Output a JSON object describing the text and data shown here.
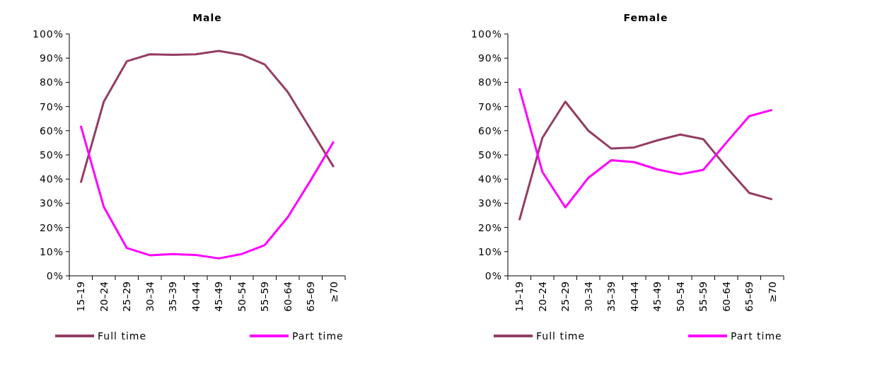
{
  "chart_data": [
    {
      "type": "line",
      "title": "Male",
      "categories": [
        "15–19",
        "20–24",
        "25–29",
        "30–34",
        "35–39",
        "40–44",
        "45–49",
        "50–54",
        "55–59",
        "60–64",
        "65–69",
        "≥70"
      ],
      "series": [
        {
          "name": "Full time",
          "color": "#943d63",
          "values": [
            38.5,
            72,
            88.7,
            91.6,
            91.4,
            91.6,
            93,
            91.4,
            87.4,
            76,
            60.5,
            45
          ]
        },
        {
          "name": "Part time",
          "color": "#ff00ff",
          "values": [
            62,
            28.5,
            11.5,
            8.5,
            9,
            8.6,
            7.2,
            9,
            12.7,
            24.2,
            39.5,
            55.5
          ]
        }
      ],
      "ylim": [
        0,
        100
      ],
      "yticks": [
        {
          "value": 0,
          "label": "0%"
        },
        {
          "value": 10,
          "label": "10%"
        },
        {
          "value": 20,
          "label": "20%"
        },
        {
          "value": 30,
          "label": "30%"
        },
        {
          "value": 40,
          "label": "40%"
        },
        {
          "value": 50,
          "label": "50%"
        },
        {
          "value": 60,
          "label": "60%"
        },
        {
          "value": 70,
          "label": "70%"
        },
        {
          "value": 80,
          "label": "80%"
        },
        {
          "value": 90,
          "label": "90%"
        },
        {
          "value": 100,
          "label": "100%"
        }
      ],
      "grid": false,
      "legend": "bottom",
      "marker": "none",
      "line_style": "solid"
    },
    {
      "type": "line",
      "title": "Female",
      "categories": [
        "15–19",
        "20–24",
        "25–29",
        "30–34",
        "35–39",
        "40–44",
        "45–49",
        "50–54",
        "55–59",
        "60–64",
        "65–69",
        "≥70"
      ],
      "series": [
        {
          "name": "Full time",
          "color": "#943d63",
          "values": [
            23,
            57,
            72,
            60,
            52.6,
            53.1,
            56,
            58.4,
            56.5,
            45,
            34.3,
            31.6
          ]
        },
        {
          "name": "Part time",
          "color": "#ff00ff",
          "values": [
            77.5,
            43,
            28.3,
            40.5,
            47.8,
            47,
            44,
            42,
            43.8,
            55,
            66,
            68.6
          ]
        }
      ],
      "ylim": [
        0,
        100
      ],
      "yticks": [
        {
          "value": 0,
          "label": "0%"
        },
        {
          "value": 10,
          "label": "10%"
        },
        {
          "value": 20,
          "label": "20%"
        },
        {
          "value": 30,
          "label": "30%"
        },
        {
          "value": 40,
          "label": "40%"
        },
        {
          "value": 50,
          "label": "50%"
        },
        {
          "value": 60,
          "label": "60%"
        },
        {
          "value": 70,
          "label": "70%"
        },
        {
          "value": 80,
          "label": "80%"
        },
        {
          "value": 90,
          "label": "90%"
        },
        {
          "value": 100,
          "label": "100%"
        }
      ],
      "grid": false,
      "legend": "bottom",
      "marker": "none",
      "line_style": "solid"
    }
  ]
}
